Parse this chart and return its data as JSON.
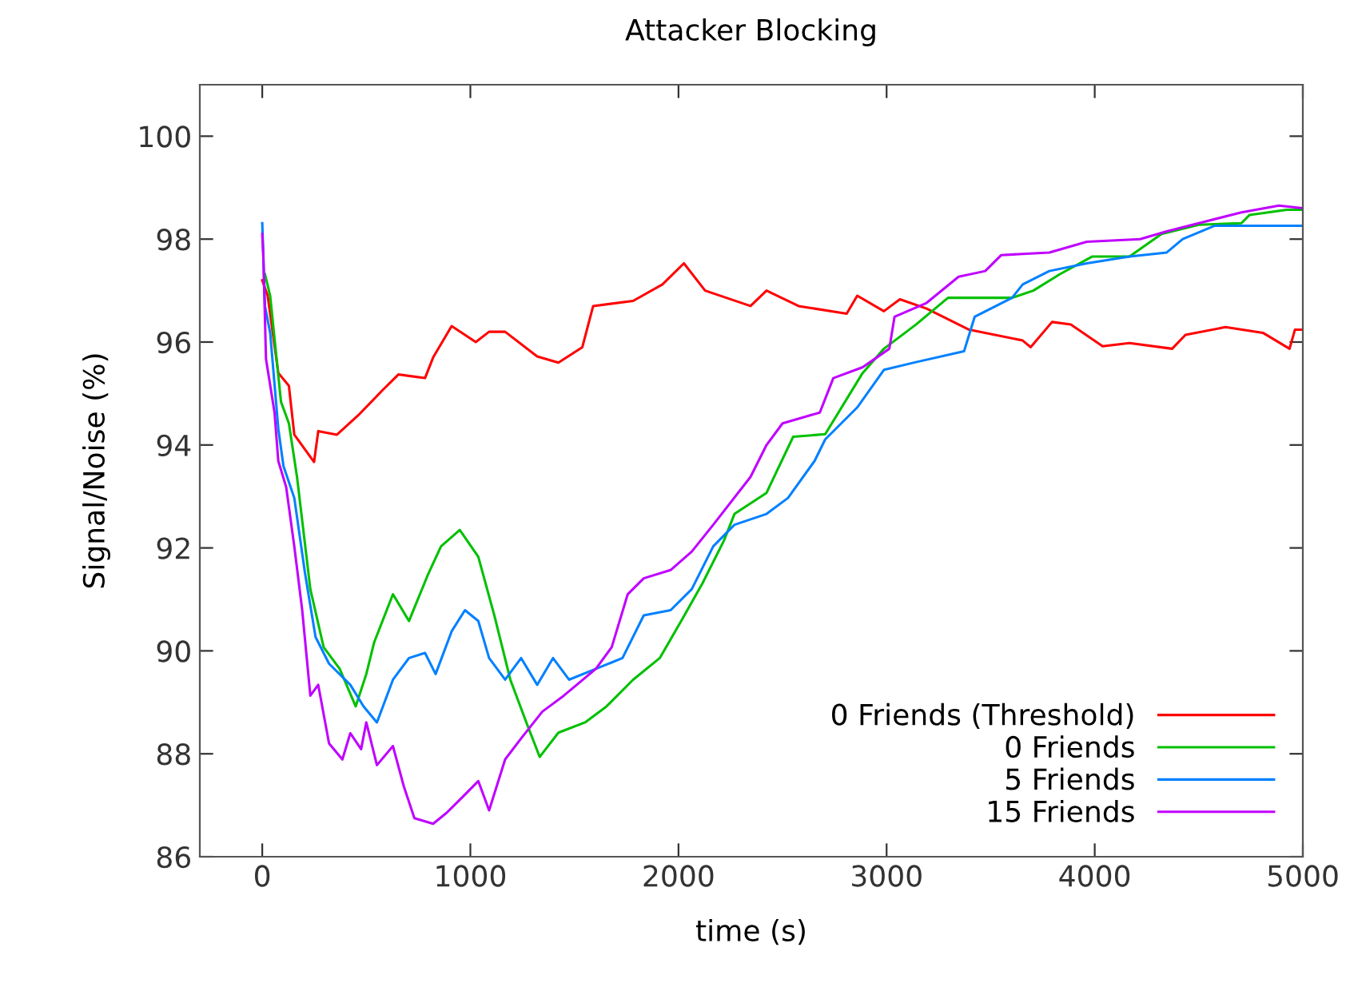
{
  "chart_data": {
    "type": "line",
    "title": "Attacker Blocking",
    "xlabel": "time (s)",
    "ylabel": "Signal/Noise (%)",
    "xlim": [
      -300,
      5000
    ],
    "ylim": [
      86,
      101
    ],
    "xticks": [
      0,
      1000,
      2000,
      3000,
      4000,
      5000
    ],
    "yticks": [
      86,
      88,
      90,
      92,
      94,
      96,
      98,
      100
    ],
    "grid": false,
    "legend": "bottom right",
    "marker": "none",
    "line_style": "solid",
    "series": [
      {
        "name": "0 Friends (Threshold)",
        "color": "#ff0000",
        "x": [
          0,
          26,
          77,
          128,
          154,
          249,
          269,
          359,
          462,
          577,
          654,
          782,
          821,
          910,
          1026,
          1090,
          1167,
          1321,
          1423,
          1538,
          1590,
          1782,
          1923,
          2026,
          2128,
          2346,
          2423,
          2577,
          2808,
          2859,
          2987,
          3064,
          3192,
          3397,
          3654,
          3692,
          3795,
          3885,
          4038,
          4167,
          4372,
          4436,
          4628,
          4808,
          4936,
          4962,
          5000
        ],
        "values": [
          97.2,
          96.9,
          95.4,
          95.15,
          94.2,
          93.67,
          94.27,
          94.2,
          94.58,
          95.06,
          95.37,
          95.3,
          95.7,
          96.31,
          96.0,
          96.2,
          96.2,
          95.72,
          95.6,
          95.9,
          96.7,
          96.8,
          97.12,
          97.53,
          97.0,
          96.7,
          97.0,
          96.7,
          96.55,
          96.9,
          96.6,
          96.83,
          96.65,
          96.24,
          96.03,
          95.9,
          96.39,
          96.34,
          95.92,
          95.98,
          95.87,
          96.14,
          96.29,
          96.18,
          95.87,
          96.24,
          96.24
        ]
      },
      {
        "name": "0 Friends",
        "color": "#00c000",
        "x": [
          13,
          38,
          64,
          90,
          128,
          167,
          231,
          295,
          372,
          449,
          500,
          538,
          628,
          705,
          795,
          859,
          949,
          1038,
          1115,
          1192,
          1269,
          1333,
          1423,
          1551,
          1654,
          1782,
          1910,
          2013,
          2115,
          2218,
          2269,
          2423,
          2551,
          2705,
          2885,
          2987,
          3141,
          3295,
          3603,
          3705,
          3833,
          3987,
          4167,
          4321,
          4500,
          4705,
          4744,
          4923,
          5000
        ],
        "values": [
          97.32,
          96.9,
          95.87,
          94.84,
          94.42,
          93.38,
          91.2,
          90.07,
          89.65,
          88.92,
          89.55,
          90.17,
          91.1,
          90.58,
          91.47,
          92.03,
          92.35,
          91.83,
          90.69,
          89.44,
          88.61,
          87.94,
          88.41,
          88.61,
          88.92,
          89.44,
          89.86,
          90.58,
          91.31,
          92.14,
          92.66,
          93.07,
          94.16,
          94.21,
          95.4,
          95.87,
          96.34,
          96.86,
          96.86,
          97.0,
          97.32,
          97.66,
          97.66,
          98.1,
          98.28,
          98.31,
          98.47,
          98.57,
          98.57
        ]
      },
      {
        "name": "5 Friends",
        "color": "#0080ff",
        "x": [
          0,
          13,
          38,
          77,
          102,
          154,
          205,
          256,
          321,
          423,
          487,
          551,
          628,
          705,
          782,
          833,
          910,
          974,
          1038,
          1090,
          1167,
          1244,
          1321,
          1397,
          1474,
          1603,
          1731,
          1833,
          1962,
          2064,
          2167,
          2269,
          2423,
          2526,
          2654,
          2705,
          2859,
          2987,
          3141,
          3372,
          3423,
          3603,
          3654,
          3782,
          3962,
          4167,
          4346,
          4423,
          4577,
          5000
        ],
        "values": [
          98.31,
          96.7,
          96.18,
          94.32,
          93.59,
          92.97,
          91.52,
          90.27,
          89.75,
          89.34,
          88.92,
          88.61,
          89.44,
          89.86,
          89.96,
          89.55,
          90.38,
          90.79,
          90.58,
          89.86,
          89.44,
          89.86,
          89.34,
          89.86,
          89.44,
          89.65,
          89.86,
          90.69,
          90.79,
          91.2,
          92.03,
          92.45,
          92.66,
          92.97,
          93.69,
          94.11,
          94.73,
          95.46,
          95.61,
          95.82,
          96.49,
          96.86,
          97.12,
          97.38,
          97.53,
          97.66,
          97.74,
          98.0,
          98.26,
          98.26
        ]
      },
      {
        "name": "15 Friends",
        "color": "#c000ff",
        "x": [
          0,
          5,
          18,
          59,
          77,
          115,
          154,
          192,
          231,
          269,
          321,
          385,
          423,
          475,
          500,
          551,
          628,
          680,
          731,
          821,
          885,
          962,
          1038,
          1090,
          1167,
          1244,
          1346,
          1449,
          1603,
          1679,
          1756,
          1833,
          1962,
          2064,
          2167,
          2346,
          2423,
          2500,
          2679,
          2744,
          2885,
          3013,
          3038,
          3192,
          3346,
          3474,
          3551,
          3782,
          3962,
          4218,
          4346,
          4705,
          4885,
          5000
        ],
        "values": [
          98.1,
          97.69,
          95.67,
          94.63,
          93.69,
          93.18,
          92.03,
          90.79,
          89.13,
          89.34,
          88.2,
          87.89,
          88.4,
          88.09,
          88.61,
          87.78,
          88.15,
          87.37,
          86.75,
          86.64,
          86.85,
          87.16,
          87.47,
          86.9,
          87.89,
          88.3,
          88.82,
          89.13,
          89.65,
          90.07,
          91.1,
          91.41,
          91.57,
          91.93,
          92.45,
          93.38,
          94.0,
          94.42,
          94.63,
          95.3,
          95.51,
          95.87,
          96.49,
          96.76,
          97.27,
          97.38,
          97.69,
          97.74,
          97.95,
          98.0,
          98.15,
          98.52,
          98.65,
          98.6
        ]
      }
    ]
  }
}
